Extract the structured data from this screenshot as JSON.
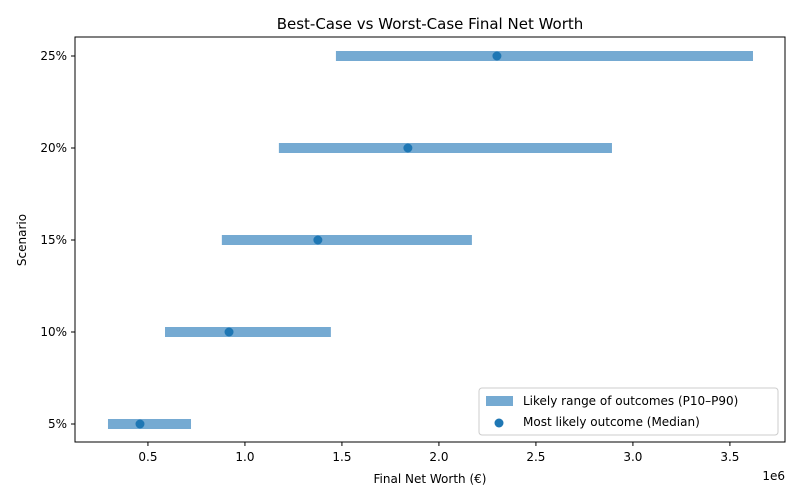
{
  "chart_data": {
    "type": "range-dot",
    "title": "Best-Case vs Worst-Case Final Net Worth",
    "xlabel": "Final Net Worth (€)",
    "ylabel": "Scenario",
    "x_offset_label": "1e6",
    "xlim": [
      124000,
      3784000
    ],
    "xticks": [
      500000,
      1000000,
      1500000,
      2000000,
      2500000,
      3000000,
      3500000
    ],
    "xtick_labels": [
      "0.5",
      "1.0",
      "1.5",
      "2.0",
      "2.5",
      "3.0",
      "3.5"
    ],
    "categories": [
      "5%",
      "10%",
      "15%",
      "20%",
      "25%"
    ],
    "series": [
      {
        "name": "Likely range of outcomes (P10–P90)",
        "kind": "range",
        "color": "#75aad2",
        "low": [
          294000,
          588000,
          881000,
          1175000,
          1469000
        ],
        "high": [
          722000,
          1443000,
          2170000,
          2892000,
          3619000
        ]
      },
      {
        "name": "Most likely outcome (Median)",
        "kind": "point",
        "color": "#1f77b4",
        "values": [
          459000,
          918000,
          1376000,
          1840000,
          2299000
        ]
      }
    ],
    "grid": false,
    "legend_position": "lower-right"
  }
}
